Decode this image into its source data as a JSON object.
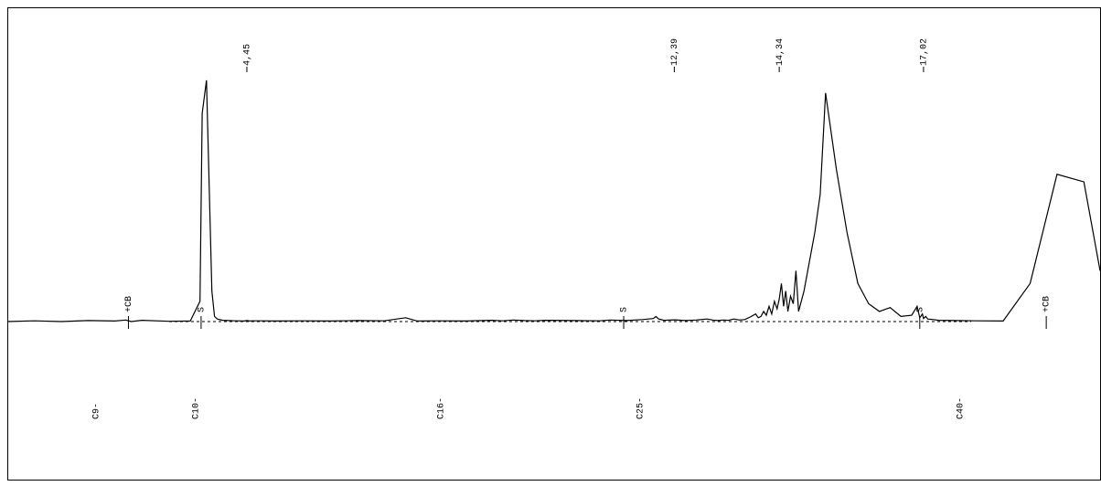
{
  "chart_data": {
    "type": "line",
    "title": "",
    "xlabel": "",
    "ylabel": "",
    "grid": false,
    "retention_time_axis": {
      "xlim": [
        0,
        20.3
      ]
    },
    "intensity_axis": {
      "ylim": [
        -0.03,
        1.0
      ]
    },
    "series": [
      {
        "x": [
          0.0,
          0.5,
          1.0,
          1.5,
          2.0,
          2.2,
          2.3,
          2.5,
          3.0,
          3.4,
          3.58,
          3.62,
          3.7,
          3.8,
          3.85,
          3.9,
          4.0,
          4.1,
          4.25,
          4.4,
          4.45,
          4.5,
          4.55,
          4.7,
          5.0,
          5.5,
          6.0,
          6.5,
          7.0,
          7.4,
          7.6,
          7.7,
          8.0,
          8.5,
          9.0,
          9.2,
          9.4,
          9.6,
          9.8,
          10.0,
          10.5,
          11.0,
          11.2,
          11.5,
          11.8,
          12.0,
          12.05,
          12.1,
          12.2,
          12.4,
          12.6,
          12.8,
          13.0,
          13.1,
          13.2,
          13.3,
          13.4,
          13.5,
          13.6,
          13.7,
          13.8,
          13.9,
          13.95,
          14.0,
          14.05,
          14.1,
          14.15,
          14.2,
          14.25,
          14.3,
          14.34,
          14.38,
          14.42,
          14.46,
          14.5,
          14.55,
          14.6,
          14.65,
          14.7,
          14.8,
          15.0,
          15.1,
          15.2,
          15.4,
          15.6,
          15.8,
          16.0,
          16.2,
          16.4,
          16.6,
          16.8,
          16.9,
          16.95,
          17.0,
          17.02,
          17.06,
          17.1,
          17.2,
          17.3,
          17.6,
          18.0,
          18.5,
          19.0,
          19.5,
          20.0,
          20.3
        ],
        "values": [
          0.0,
          0.003,
          0.0,
          0.004,
          0.002,
          0.006,
          0.0,
          0.005,
          0.001,
          0.002,
          0.08,
          0.82,
          0.95,
          0.12,
          0.02,
          0.01,
          0.005,
          0.004,
          0.003,
          0.002,
          0.004,
          0.002,
          0.003,
          0.003,
          0.002,
          0.003,
          0.002,
          0.004,
          0.003,
          0.015,
          0.003,
          0.002,
          0.003,
          0.002,
          0.005,
          0.003,
          0.006,
          0.004,
          0.003,
          0.005,
          0.004,
          0.003,
          0.006,
          0.004,
          0.008,
          0.012,
          0.02,
          0.01,
          0.005,
          0.007,
          0.004,
          0.006,
          0.01,
          0.006,
          0.004,
          0.006,
          0.005,
          0.01,
          0.006,
          0.008,
          0.018,
          0.03,
          0.015,
          0.02,
          0.04,
          0.025,
          0.06,
          0.03,
          0.08,
          0.05,
          0.09,
          0.15,
          0.06,
          0.12,
          0.04,
          0.1,
          0.07,
          0.2,
          0.04,
          0.12,
          0.35,
          0.5,
          0.9,
          0.6,
          0.35,
          0.15,
          0.07,
          0.04,
          0.055,
          0.02,
          0.025,
          0.06,
          0.015,
          0.03,
          0.012,
          0.02,
          0.01,
          0.008,
          0.005,
          0.004,
          0.003,
          0.002,
          0.15,
          0.58,
          0.55,
          0.2
        ]
      }
    ],
    "peak_labels": [
      {
        "x": 4.45,
        "label": "4,45"
      },
      {
        "x": 12.39,
        "label": "12,39"
      },
      {
        "x": 14.34,
        "label": "14,34"
      },
      {
        "x": 17.02,
        "label": "17,02"
      }
    ],
    "baseline_markers": [
      {
        "x": 2.25,
        "label": "+CB"
      },
      {
        "x": 3.6,
        "label": "S"
      },
      {
        "x": 11.45,
        "label": "S"
      },
      {
        "x": 16.95,
        "label": "S"
      },
      {
        "x": 19.3,
        "label": "+CB"
      }
    ],
    "alkane_markers": [
      {
        "x": 1.65,
        "label": "C9"
      },
      {
        "x": 3.5,
        "label": "C10"
      },
      {
        "x": 8.05,
        "label": "C16"
      },
      {
        "x": 11.75,
        "label": "C25"
      },
      {
        "x": 17.7,
        "label": "C40"
      }
    ]
  }
}
